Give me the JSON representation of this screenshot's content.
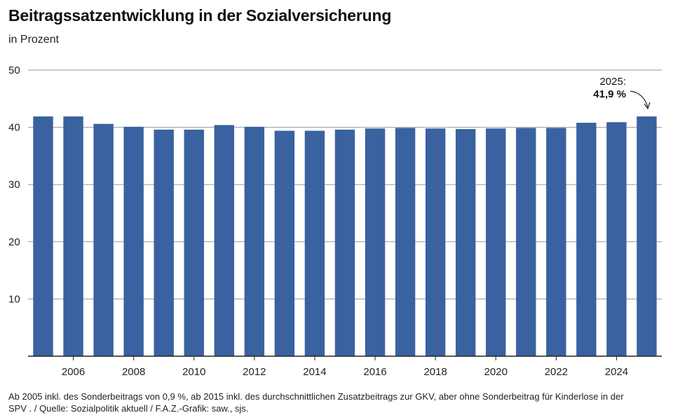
{
  "header": {
    "title": "Beitragssatzentwicklung in der Sozialversicherung",
    "subtitle": "in Prozent"
  },
  "chart_data": {
    "type": "bar",
    "title": "Beitragssatzentwicklung in der Sozialversicherung",
    "subtitle": "in Prozent",
    "xlabel": "",
    "ylabel": "",
    "categories": [
      "2005",
      "2006",
      "2007",
      "2008",
      "2009",
      "2010",
      "2011",
      "2012",
      "2013",
      "2014",
      "2015",
      "2016",
      "2017",
      "2018",
      "2019",
      "2020",
      "2021",
      "2022",
      "2023",
      "2024",
      "2025"
    ],
    "values": [
      41.9,
      41.9,
      40.6,
      40.1,
      39.6,
      39.6,
      40.4,
      40.1,
      39.4,
      39.4,
      39.6,
      39.8,
      39.9,
      39.8,
      39.7,
      39.8,
      39.9,
      39.9,
      40.8,
      40.9,
      41.9
    ],
    "x_tick_labels": [
      "2006",
      "2008",
      "2010",
      "2012",
      "2014",
      "2016",
      "2018",
      "2020",
      "2022",
      "2024"
    ],
    "y_ticks": [
      10,
      20,
      30,
      40,
      50
    ],
    "ylim": [
      0,
      50
    ],
    "grid": true,
    "bar_color": "#3a62a0",
    "annotation": {
      "line1": "2025:",
      "line2": "41,9 %",
      "category": "2025"
    }
  },
  "footnote": {
    "line1": "Ab 2005 inkl. des Sonderbeitrags von 0,9 %, ab 2015 inkl. des durchschnittlichen Zusatzbeitrags zur GKV, aber ohne Sonderbeitrag für Kinderlose in der",
    "line2": "SPV .  / Quelle: Sozialpolitik aktuell  / F.A.Z.-Grafik: saw., sjs."
  }
}
